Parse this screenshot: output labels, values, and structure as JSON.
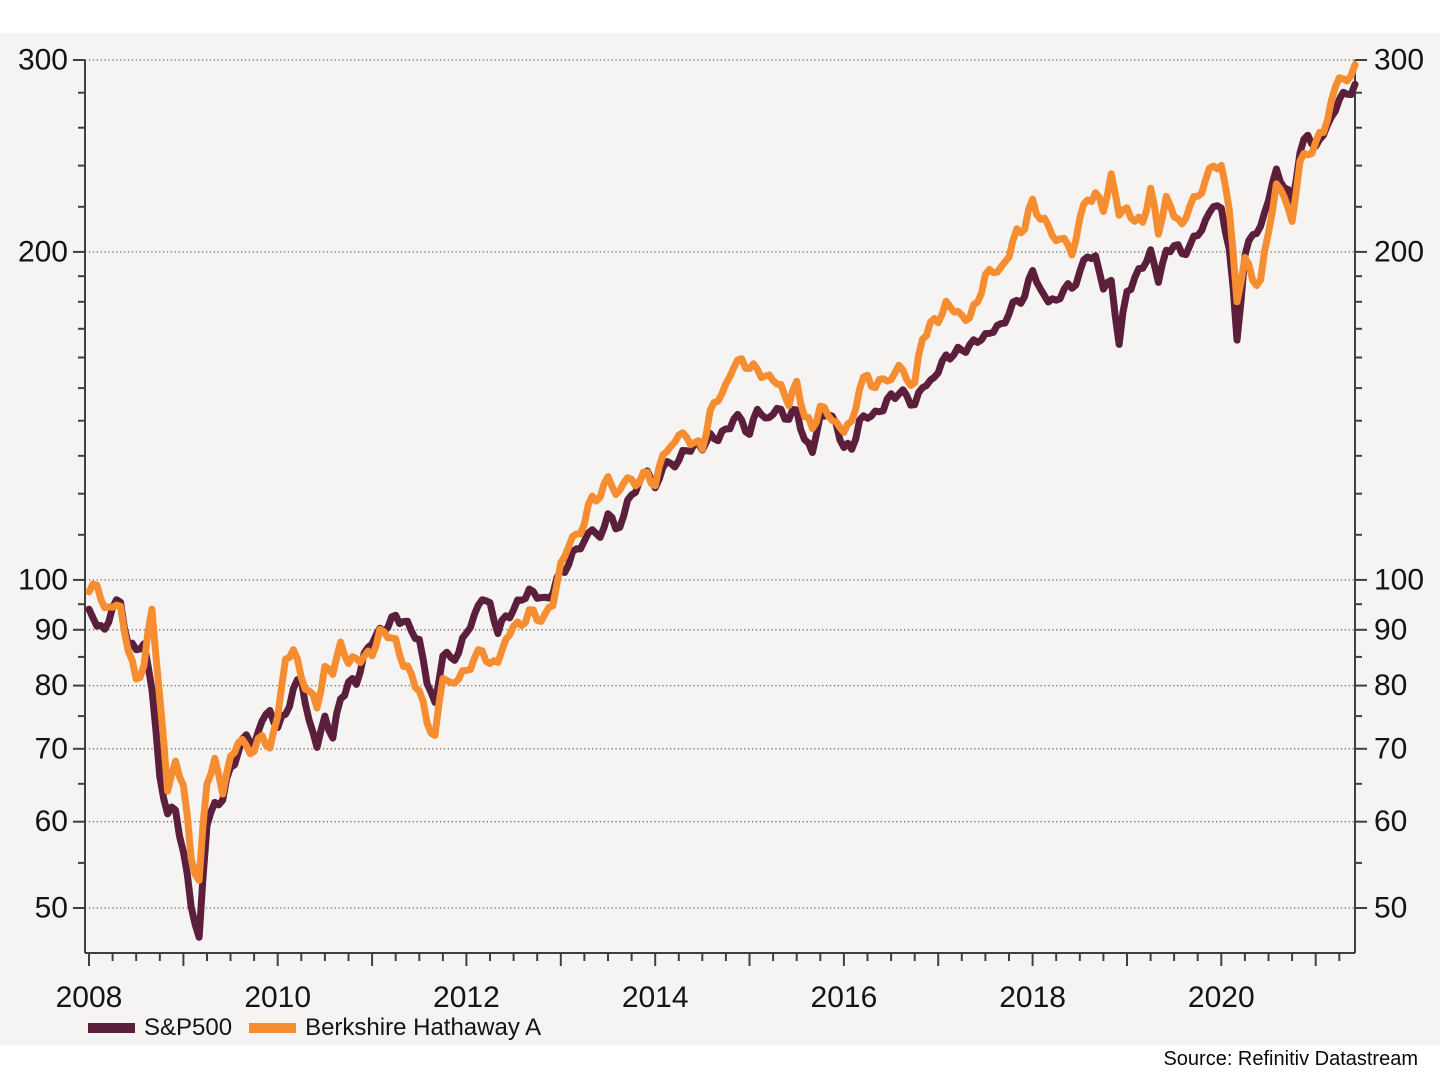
{
  "colors": {
    "sp500": "#5B1F3C",
    "berkshire": "#F68D31",
    "band_background": "#F5F4F3",
    "page_background": "#FFFFFF",
    "axis": "#3F3F3F",
    "grid": "#6E6E6E",
    "tick_label": "#141414"
  },
  "legend": {
    "items": [
      {
        "label": "S&P500"
      },
      {
        "label": "Berkshire Hathaway A"
      }
    ]
  },
  "source": {
    "text": "Source: Refinitiv Datastream"
  },
  "chart_data": {
    "type": "line",
    "title": "",
    "xlabel": "",
    "ylabel": "",
    "y_scale": "log",
    "y_axis_labels_both_sides": true,
    "grid": "horizontal dotted at labeled ticks",
    "legend_position": "bottom-left",
    "y_major_ticks": [
      300,
      200,
      100,
      90,
      80,
      70,
      60,
      50
    ],
    "y_minor_ticks": [
      280,
      260,
      240,
      220,
      190,
      180,
      170,
      160,
      150,
      140,
      130,
      120,
      110,
      95,
      85,
      75,
      65,
      55
    ],
    "y_top_value": 300,
    "x_start_year": 2008,
    "x_end_year_fraction": 2021.5,
    "x_labeled_years": [
      2008,
      2010,
      2012,
      2014,
      2016,
      2018,
      2020
    ],
    "x_minor_tick_months": 3,
    "series": [
      {
        "name": "S&P500",
        "color_key": "sp500",
        "start": "2008-01",
        "interval": "monthly",
        "values": [
          94.0,
          90.7,
          90.1,
          94.4,
          95.4,
          87.2,
          86.3,
          87.4,
          79.4,
          66.0,
          61.0,
          61.5,
          56.3,
          50.1,
          47.0,
          59.5,
          62.5,
          62.8,
          67.3,
          69.5,
          72.1,
          70.6,
          74.2,
          75.9,
          73.2,
          75.3,
          79.5,
          80.9,
          74.3,
          70.2,
          75.0,
          71.6,
          77.8,
          80.6,
          80.2,
          85.7,
          87.3,
          90.3,
          90.4,
          92.8,
          91.6,
          89.8,
          88.2,
          80.3,
          77.2,
          85.2,
          84.9,
          85.7,
          89.4,
          92.9,
          95.9,
          95.3,
          89.3,
          92.7,
          93.9,
          95.8,
          98.1,
          96.2,
          96.4,
          97.1,
          102.1,
          103.3,
          106.8,
          108.6,
          111.2,
          109.4,
          115.0,
          111.4,
          114.5,
          119.7,
          123.1,
          125.9,
          121.5,
          126.9,
          127.9,
          128.7,
          131.4,
          133.5,
          131.6,
          136.3,
          134.2,
          137.6,
          140.5,
          140.2,
          136.0,
          143.4,
          140.8,
          141.9,
          143.4,
          140.4,
          143.2,
          134.5,
          130.9,
          141.7,
          141.7,
          139.2,
          132.3,
          131.8,
          140.2,
          140.7,
          142.9,
          143.0,
          148.2,
          148.1,
          147.6,
          144.8,
          150.1,
          152.5,
          154.9,
          160.9,
          161.0,
          162.5,
          164.4,
          165.2,
          168.3,
          168.7,
          171.9,
          175.4,
          180.5,
          182.1,
          192.3,
          184.9,
          179.9,
          180.6,
          184.9,
          185.2,
          191.9,
          197.9,
          198.4,
          184.9,
          188.3,
          164.5,
          184.0,
          189.5,
          193.2,
          200.9,
          187.5,
          200.7,
          202.7,
          199.3,
          202.8,
          207.0,
          214.1,
          220.1,
          219.4,
          201.3,
          166.0,
          198.4,
          207.4,
          211.2,
          222.8,
          238.3,
          229.1,
          222.6,
          246.6,
          255.9,
          250.0,
          256.0,
          266.0,
          276.0,
          279.0,
          285.0
        ]
      },
      {
        "name": "Berkshire Hathaway A",
        "color_key": "berkshire",
        "start": "2008-01",
        "interval": "monthly",
        "values": [
          97.5,
          98.9,
          94.3,
          94.4,
          94.6,
          86.0,
          81.1,
          83.5,
          94.0,
          78.0,
          64.0,
          68.2,
          64.8,
          55.5,
          53.0,
          65.0,
          68.6,
          63.6,
          68.9,
          70.9,
          70.5,
          69.6,
          72.0,
          70.1,
          74.9,
          84.6,
          86.3,
          81.4,
          79.1,
          76.3,
          83.3,
          81.9,
          87.7,
          83.8,
          84.7,
          85.1,
          85.2,
          90.1,
          88.5,
          88.3,
          83.3,
          82.0,
          79.1,
          73.9,
          72.0,
          81.2,
          80.5,
          81.1,
          82.6,
          84.7,
          86.1,
          83.8,
          84.0,
          88.2,
          90.7,
          90.8,
          93.9,
          91.8,
          93.1,
          94.7,
          103.7,
          107.3,
          110.2,
          112.6,
          119.4,
          119.1,
          124.4,
          119.8,
          122.7,
          123.7,
          122.8,
          125.6,
          122.0,
          130.3,
          132.6,
          135.8,
          135.2,
          133.7,
          131.8,
          143.1,
          145.9,
          151.4,
          156.6,
          159.6,
          156.3,
          156.1,
          153.8,
          152.4,
          151.1,
          144.5,
          152.2,
          141.2,
          137.7,
          144.4,
          141.5,
          139.7,
          136.6,
          139.9,
          149.7,
          154.1,
          150.1,
          153.0,
          152.7,
          157.4,
          152.6,
          151.7,
          166.3,
          172.4,
          172.2,
          180.2,
          176.1,
          175.0,
          174.0,
          179.9,
          190.7,
          191.4,
          193.8,
          197.8,
          210.0,
          209.8,
          223.6,
          214.2,
          211.5,
          204.8,
          205.8,
          198.7,
          214.7,
          223.2,
          226.7,
          217.8,
          235.9,
          216.1,
          219.6,
          213.3,
          212.9,
          228.8,
          207.6,
          224.9,
          215.4,
          212.2,
          220.3,
          224.9,
          233.0,
          239.8,
          240.1,
          218.9,
          180.0,
          197.7,
          188.2,
          188.5,
          208.3,
          230.9,
          224.6,
          213.3,
          242.2,
          245.6,
          252.2,
          257.4,
          275.4,
          289.0,
          287.0,
          297.0
        ]
      }
    ]
  }
}
